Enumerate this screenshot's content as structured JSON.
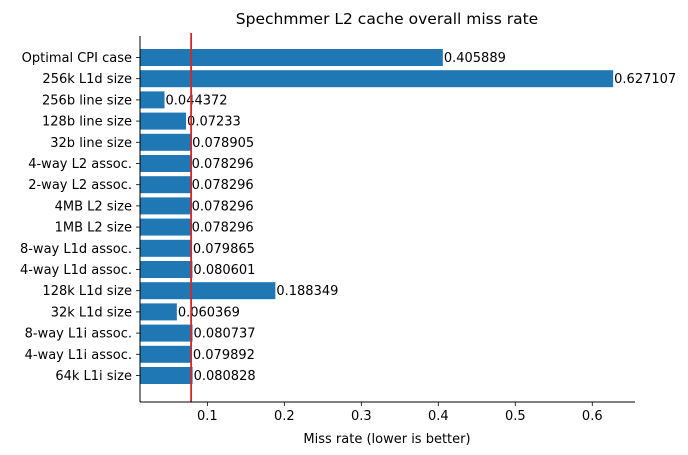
{
  "chart_data": {
    "type": "bar",
    "orientation": "horizontal",
    "title": "Spechmmer L2 cache overall miss rate",
    "xlabel": "Miss rate (lower is better)",
    "ylabel": "",
    "categories": [
      "Optimal CPI case",
      "256k L1d size",
      "256b line size",
      "128b line size",
      "32b line size",
      "4-way L2 assoc.",
      "2-way L2 assoc.",
      "4MB L2 size",
      "1MB L2 size",
      "8-way L1d assoc.",
      "4-way L1d assoc.",
      "128k L1d size",
      "32k L1d size",
      "8-way L1i assoc.",
      "4-way L1i assoc.",
      "64k L1i size"
    ],
    "values": [
      0.405889,
      0.627107,
      0.044372,
      0.07233,
      0.078905,
      0.078296,
      0.078296,
      0.078296,
      0.078296,
      0.079865,
      0.080601,
      0.188349,
      0.060369,
      0.080737,
      0.079892,
      0.080828
    ],
    "value_labels": [
      "0.405889",
      "0.627107",
      "0.044372",
      "0.07233",
      "0.078905",
      "0.078296",
      "0.078296",
      "0.078296",
      "0.078296",
      "0.079865",
      "0.080601",
      "0.188349",
      "0.060369",
      "0.080737",
      "0.079892",
      "0.080828"
    ],
    "xticks": [
      0.1,
      0.2,
      0.3,
      0.4,
      0.5,
      0.6
    ],
    "xtick_labels": [
      "0.1",
      "0.2",
      "0.3",
      "0.4",
      "0.5",
      "0.6"
    ],
    "xlim": [
      0.0125,
      0.6555
    ],
    "reference_line": {
      "x": 0.078905,
      "color": "#d62728"
    },
    "bar_color": "#1f77b4",
    "grid": false,
    "legend": "none"
  }
}
